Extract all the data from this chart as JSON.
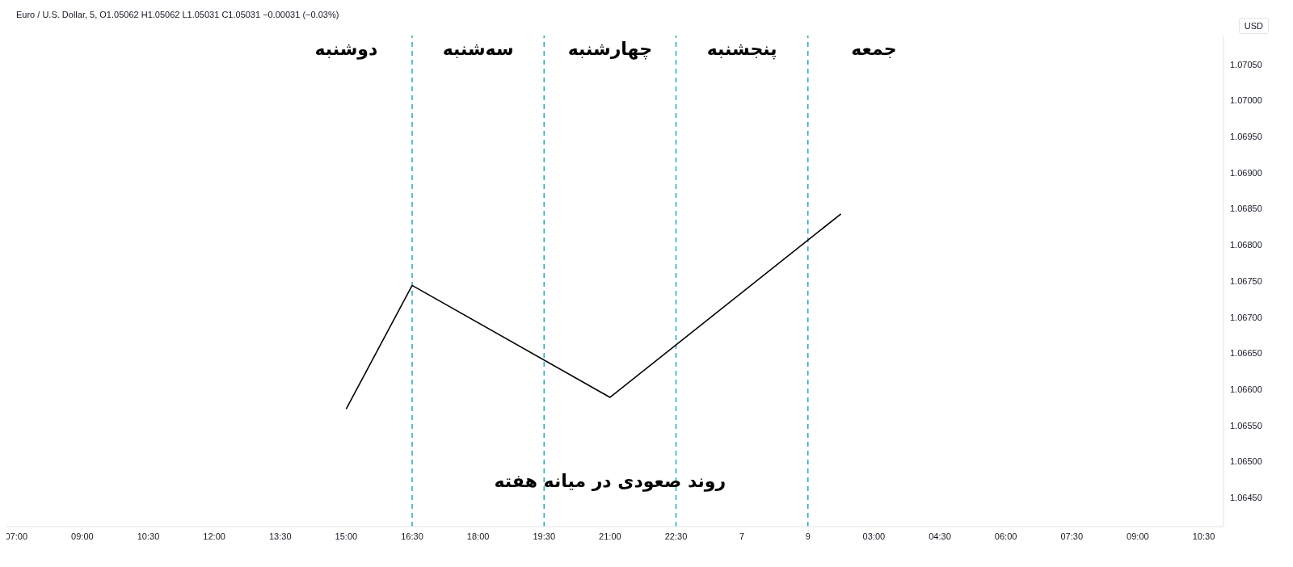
{
  "chart_data": {
    "type": "line",
    "title": "Euro / U.S. Dollar, 5, O1.05062 H1.05062 L1.05031 C1.05031 −0.00031 (−0.03%)",
    "ylabel": "USD",
    "categories": [
      "07:00",
      null,
      "09:00",
      null,
      "10:30",
      null,
      "12:00",
      null,
      "13:30",
      null,
      "15:00",
      null,
      "16:30",
      null,
      "18:00",
      null,
      "19:30",
      null,
      "21:00",
      null,
      "22:30",
      null,
      "7",
      null,
      "9",
      null,
      "03:00",
      null,
      "04:30",
      null,
      "06:00",
      null,
      "07:30",
      null,
      "09:00",
      null,
      "10:30"
    ],
    "series": [
      {
        "color": "#000000",
        "values": [
          null,
          null,
          null,
          null,
          null,
          null,
          null,
          null,
          null,
          null,
          1.06573,
          null,
          1.06744,
          null,
          null,
          null,
          null,
          null,
          1.06589,
          null,
          null,
          null,
          null,
          null,
          null,
          1.06843,
          null,
          null,
          null,
          null,
          null,
          null,
          null,
          null,
          null,
          null,
          null
        ]
      }
    ],
    "ylim": [
      1.0641,
      1.0709
    ],
    "yticks": [
      {
        "value": 1.0645,
        "label": "1.06450"
      },
      {
        "value": 1.065,
        "label": "1.06500"
      },
      {
        "value": 1.0655,
        "label": "1.06550"
      },
      {
        "value": 1.066,
        "label": "1.06600"
      },
      {
        "value": 1.0665,
        "label": "1.06650"
      },
      {
        "value": 1.067,
        "label": "1.06700"
      },
      {
        "value": 1.0675,
        "label": "1.06750"
      },
      {
        "value": 1.068,
        "label": "1.06800"
      },
      {
        "value": 1.0685,
        "label": "1.06850"
      },
      {
        "value": 1.069,
        "label": "1.06900"
      },
      {
        "value": 1.0695,
        "label": "1.06950"
      },
      {
        "value": 1.07,
        "label": "1.07000"
      },
      {
        "value": 1.0705,
        "label": "1.07050"
      }
    ],
    "ref_lines": [
      {
        "axis": "x",
        "value": "16:30",
        "color": "#26a9b5",
        "line_style": "dashed"
      },
      {
        "axis": "x",
        "value": "19:30",
        "color": "#26a9b5",
        "line_style": "dashed"
      },
      {
        "axis": "x",
        "value": "22:30",
        "color": "#26a9b5",
        "line_style": "dashed"
      },
      {
        "axis": "x",
        "value": "9",
        "color": "#26a9b5",
        "line_style": "dashed"
      }
    ],
    "annotations": [
      "دوشنبه",
      "سه‌شنبه",
      "چهارشنبه",
      "پنجشنبه",
      "جمعه",
      "روند صعودی در میانه هفته"
    ],
    "marker": "none",
    "line_style": "solid"
  }
}
